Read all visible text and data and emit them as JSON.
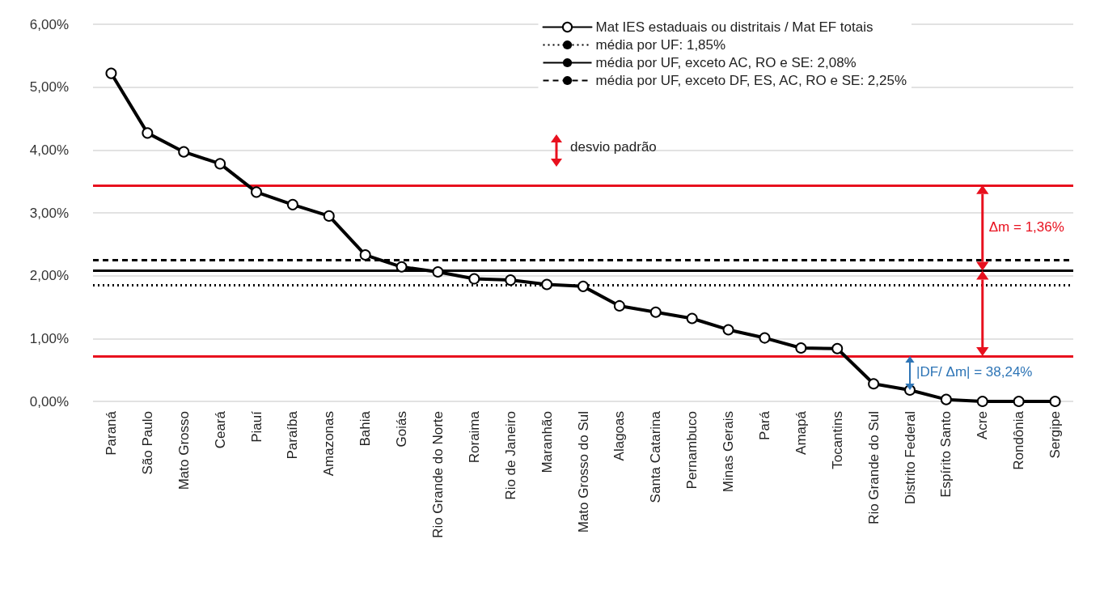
{
  "chart_data": {
    "type": "line",
    "categories": [
      "Paraná",
      "São Paulo",
      "Mato Grosso",
      "Ceará",
      "Piauí",
      "Paraíba",
      "Amazonas",
      "Bahia",
      "Goiás",
      "Rio Grande do Norte",
      "Roraima",
      "Rio de Janeiro",
      "Maranhão",
      "Mato Grosso do Sul",
      "Alagoas",
      "Santa Catarina",
      "Pernambuco",
      "Minas Gerais",
      "Pará",
      "Amapá",
      "Tocantins",
      "Rio Grande do Sul",
      "Distrito Federal",
      "Espírito Santo",
      "Acre",
      "Rondônia",
      "Sergipe"
    ],
    "series": [
      {
        "name": "Mat IES estaduais ou distritais / Mat EF totais",
        "color": "#000000",
        "values": [
          5.22,
          4.27,
          3.97,
          3.78,
          3.33,
          3.13,
          2.95,
          2.33,
          2.14,
          2.06,
          1.95,
          1.93,
          1.86,
          1.83,
          1.52,
          1.42,
          1.32,
          1.14,
          1.01,
          0.85,
          0.84,
          0.28,
          0.18,
          0.03,
          0,
          0,
          0
        ]
      }
    ],
    "ylim": [
      0,
      6
    ],
    "yticks": [
      {
        "value": 0,
        "label": "0,00%"
      },
      {
        "value": 1,
        "label": "1,00%"
      },
      {
        "value": 2,
        "label": "2,00%"
      },
      {
        "value": 3,
        "label": "3,00%"
      },
      {
        "value": 4,
        "label": "4,00%"
      },
      {
        "value": 5,
        "label": "5,00%"
      },
      {
        "value": 6,
        "label": "6,00%"
      }
    ],
    "ref_lines": [
      {
        "axis": "y",
        "value": 1.85,
        "label": "média por UF: 1,85%",
        "color": "#000000",
        "line_style": "dotted"
      },
      {
        "axis": "y",
        "value": 2.08,
        "label": "média por UF, exceto AC, RO e SE: 2,08%",
        "color": "#000000",
        "line_style": "solid"
      },
      {
        "axis": "y",
        "value": 2.25,
        "label": "média por UF, exceto DF, ES, AC, RO e SE: 2,25%",
        "color": "#000000",
        "line_style": "dashed"
      },
      {
        "axis": "y",
        "value": 3.44,
        "color": "#e8101e",
        "line_style": "solid"
      },
      {
        "axis": "y",
        "value": 0.72,
        "color": "#e8101e",
        "line_style": "solid"
      }
    ],
    "annotations": [
      "Δm = 1,36%",
      "|DF/ Δm| = 38,24%",
      "desvio padrão"
    ],
    "grid": "y",
    "legend": "top right",
    "marker": "circle",
    "line_style": "solid"
  }
}
